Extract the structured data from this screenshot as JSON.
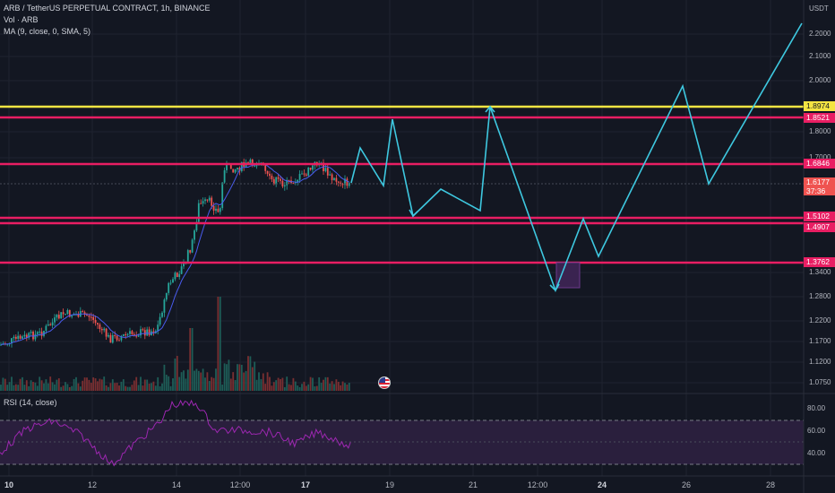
{
  "legend": {
    "title": "ARB / TetherUS PERPETUAL CONTRACT, 1h, BINANCE",
    "volume": "Vol · ARB",
    "ma": "MA (9, close, 0, SMA, 5)",
    "rsi": "RSI (14, close)"
  },
  "price_axis": {
    "currency": "USDT",
    "ticks": [
      "2.2000",
      "2.1000",
      "2.0000",
      "1.8000",
      "1.7000",
      "1.3400",
      "1.2800",
      "1.2200",
      "1.1700",
      "1.1200",
      "1.0750"
    ]
  },
  "price_tags": {
    "yellow": "1.8974",
    "line_1": "1.8521",
    "line_2": "1.6846",
    "current": "1.6177",
    "countdown": "37:36",
    "line_3": "1.5102",
    "line_4": "1.4907",
    "line_5": "1.3762"
  },
  "rsi_axis": [
    "80.00",
    "60.00",
    "40.00"
  ],
  "time_axis": [
    {
      "label": "10",
      "bold": true
    },
    {
      "label": "12",
      "bold": false
    },
    {
      "label": "14",
      "bold": false
    },
    {
      "label": "12:00",
      "bold": false
    },
    {
      "label": "17",
      "bold": true
    },
    {
      "label": "19",
      "bold": false
    },
    {
      "label": "21",
      "bold": false
    },
    {
      "label": "12:00",
      "bold": false
    },
    {
      "label": "24",
      "bold": true
    },
    {
      "label": "26",
      "bold": false
    },
    {
      "label": "28",
      "bold": false
    }
  ],
  "colors": {
    "background": "#131722",
    "yellow_line": "#f4e542",
    "pink_line": "#e91e63",
    "projection": "#3ec8e0",
    "candle_up": "#26a69a",
    "candle_down": "#ef5350",
    "ma_line": "#4a5cf0",
    "rsi_line": "#9c27b0",
    "rsi_band": "#2a1f3d"
  },
  "icons": {
    "flag": "us-flag-icon"
  }
}
